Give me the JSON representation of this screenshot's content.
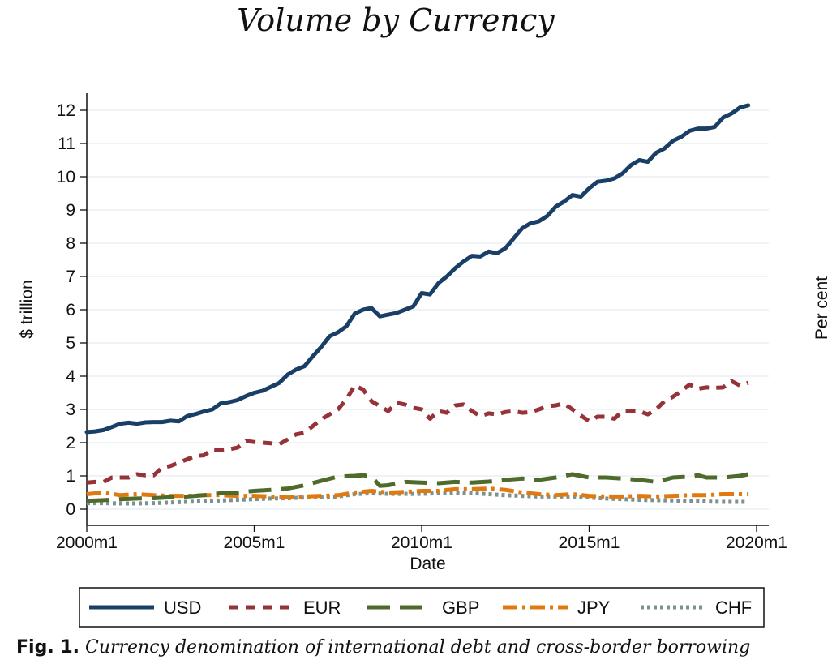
{
  "caption": {
    "label": "Fig. 1.",
    "text": "Currency denomination of international debt and cross-border borrowing"
  },
  "chart_data": {
    "type": "line",
    "title": "Volume by Currency",
    "xlabel": "Date",
    "ylabel": "$ trillion",
    "ylabel_right": "Per cent",
    "xlim": [
      2000.0,
      2020.0
    ],
    "ylim": [
      0,
      12
    ],
    "y_ticks": [
      "0",
      "1",
      "2",
      "3",
      "4",
      "5",
      "6",
      "7",
      "8",
      "9",
      "10",
      "11",
      "12"
    ],
    "x_ticks": [
      {
        "value": 2000.0,
        "label": "2000m1"
      },
      {
        "value": 2005.0,
        "label": "2005m1"
      },
      {
        "value": 2010.0,
        "label": "2010m1"
      },
      {
        "value": 2015.0,
        "label": "2015m1"
      },
      {
        "value": 2020.0,
        "label": "2020m1"
      }
    ],
    "grid": true,
    "legend_position": "bottom",
    "series": [
      {
        "name": "USD",
        "color": "#1a3f66",
        "dash": "solid",
        "points": [
          [
            2000.0,
            2.32
          ],
          [
            2000.25,
            2.34
          ],
          [
            2000.5,
            2.38
          ],
          [
            2000.75,
            2.47
          ],
          [
            2001.0,
            2.57
          ],
          [
            2001.25,
            2.6
          ],
          [
            2001.5,
            2.57
          ],
          [
            2001.75,
            2.61
          ],
          [
            2002.0,
            2.62
          ],
          [
            2002.25,
            2.62
          ],
          [
            2002.5,
            2.66
          ],
          [
            2002.75,
            2.64
          ],
          [
            2003.0,
            2.8
          ],
          [
            2003.25,
            2.86
          ],
          [
            2003.5,
            2.94
          ],
          [
            2003.75,
            3.0
          ],
          [
            2004.0,
            3.18
          ],
          [
            2004.25,
            3.22
          ],
          [
            2004.5,
            3.28
          ],
          [
            2004.75,
            3.4
          ],
          [
            2005.0,
            3.5
          ],
          [
            2005.25,
            3.56
          ],
          [
            2005.5,
            3.68
          ],
          [
            2005.75,
            3.8
          ],
          [
            2006.0,
            4.05
          ],
          [
            2006.25,
            4.2
          ],
          [
            2006.5,
            4.3
          ],
          [
            2006.75,
            4.6
          ],
          [
            2007.0,
            4.88
          ],
          [
            2007.25,
            5.2
          ],
          [
            2007.5,
            5.32
          ],
          [
            2007.75,
            5.5
          ],
          [
            2008.0,
            5.88
          ],
          [
            2008.25,
            6.0
          ],
          [
            2008.5,
            6.05
          ],
          [
            2008.75,
            5.8
          ],
          [
            2009.0,
            5.85
          ],
          [
            2009.25,
            5.9
          ],
          [
            2009.5,
            6.0
          ],
          [
            2009.75,
            6.1
          ],
          [
            2010.0,
            6.5
          ],
          [
            2010.25,
            6.46
          ],
          [
            2010.5,
            6.8
          ],
          [
            2010.75,
            7.0
          ],
          [
            2011.0,
            7.25
          ],
          [
            2011.25,
            7.45
          ],
          [
            2011.5,
            7.62
          ],
          [
            2011.75,
            7.6
          ],
          [
            2012.0,
            7.75
          ],
          [
            2012.25,
            7.7
          ],
          [
            2012.5,
            7.85
          ],
          [
            2012.75,
            8.15
          ],
          [
            2013.0,
            8.45
          ],
          [
            2013.25,
            8.6
          ],
          [
            2013.5,
            8.66
          ],
          [
            2013.75,
            8.82
          ],
          [
            2014.0,
            9.1
          ],
          [
            2014.25,
            9.25
          ],
          [
            2014.5,
            9.45
          ],
          [
            2014.75,
            9.4
          ],
          [
            2015.0,
            9.65
          ],
          [
            2015.25,
            9.85
          ],
          [
            2015.5,
            9.88
          ],
          [
            2015.75,
            9.95
          ],
          [
            2016.0,
            10.1
          ],
          [
            2016.25,
            10.35
          ],
          [
            2016.5,
            10.5
          ],
          [
            2016.75,
            10.45
          ],
          [
            2017.0,
            10.72
          ],
          [
            2017.25,
            10.85
          ],
          [
            2017.5,
            11.08
          ],
          [
            2017.75,
            11.2
          ],
          [
            2018.0,
            11.38
          ],
          [
            2018.25,
            11.45
          ],
          [
            2018.5,
            11.45
          ],
          [
            2018.75,
            11.5
          ],
          [
            2019.0,
            11.78
          ],
          [
            2019.25,
            11.9
          ],
          [
            2019.5,
            12.08
          ],
          [
            2019.75,
            12.15
          ]
        ]
      },
      {
        "name": "EUR",
        "color": "#963338",
        "dash": "short",
        "points": [
          [
            2000.0,
            0.8
          ],
          [
            2000.25,
            0.82
          ],
          [
            2000.5,
            0.82
          ],
          [
            2000.75,
            0.95
          ],
          [
            2001.0,
            0.95
          ],
          [
            2001.25,
            0.95
          ],
          [
            2001.5,
            1.05
          ],
          [
            2001.75,
            1.02
          ],
          [
            2002.0,
            1.02
          ],
          [
            2002.25,
            1.25
          ],
          [
            2002.5,
            1.3
          ],
          [
            2002.75,
            1.4
          ],
          [
            2003.0,
            1.5
          ],
          [
            2003.25,
            1.6
          ],
          [
            2003.5,
            1.62
          ],
          [
            2003.75,
            1.8
          ],
          [
            2004.0,
            1.78
          ],
          [
            2004.25,
            1.8
          ],
          [
            2004.5,
            1.85
          ],
          [
            2004.75,
            2.05
          ],
          [
            2005.0,
            2.02
          ],
          [
            2005.25,
            2.0
          ],
          [
            2005.5,
            1.98
          ],
          [
            2005.75,
            1.95
          ],
          [
            2006.0,
            2.1
          ],
          [
            2006.25,
            2.25
          ],
          [
            2006.5,
            2.3
          ],
          [
            2006.75,
            2.5
          ],
          [
            2007.0,
            2.7
          ],
          [
            2007.25,
            2.85
          ],
          [
            2007.5,
            3.0
          ],
          [
            2007.75,
            3.3
          ],
          [
            2008.0,
            3.72
          ],
          [
            2008.25,
            3.6
          ],
          [
            2008.5,
            3.25
          ],
          [
            2008.75,
            3.1
          ],
          [
            2009.0,
            2.95
          ],
          [
            2009.25,
            3.2
          ],
          [
            2009.5,
            3.15
          ],
          [
            2009.75,
            3.05
          ],
          [
            2010.0,
            3.0
          ],
          [
            2010.25,
            2.72
          ],
          [
            2010.5,
            2.95
          ],
          [
            2010.75,
            2.9
          ],
          [
            2011.0,
            3.12
          ],
          [
            2011.25,
            3.15
          ],
          [
            2011.5,
            2.95
          ],
          [
            2011.75,
            2.8
          ],
          [
            2012.0,
            2.88
          ],
          [
            2012.25,
            2.85
          ],
          [
            2012.5,
            2.92
          ],
          [
            2012.75,
            2.95
          ],
          [
            2013.0,
            2.9
          ],
          [
            2013.25,
            2.92
          ],
          [
            2013.5,
            3.0
          ],
          [
            2013.75,
            3.1
          ],
          [
            2014.0,
            3.12
          ],
          [
            2014.25,
            3.18
          ],
          [
            2014.5,
            3.0
          ],
          [
            2014.75,
            2.82
          ],
          [
            2015.0,
            2.65
          ],
          [
            2015.25,
            2.78
          ],
          [
            2015.5,
            2.78
          ],
          [
            2015.75,
            2.72
          ],
          [
            2016.0,
            2.95
          ],
          [
            2016.25,
            2.95
          ],
          [
            2016.5,
            2.95
          ],
          [
            2016.75,
            2.85
          ],
          [
            2017.0,
            3.0
          ],
          [
            2017.25,
            3.25
          ],
          [
            2017.5,
            3.38
          ],
          [
            2017.75,
            3.55
          ],
          [
            2018.0,
            3.75
          ],
          [
            2018.25,
            3.62
          ],
          [
            2018.5,
            3.66
          ],
          [
            2018.75,
            3.65
          ],
          [
            2019.0,
            3.66
          ],
          [
            2019.25,
            3.85
          ],
          [
            2019.5,
            3.72
          ],
          [
            2019.75,
            3.8
          ]
        ]
      },
      {
        "name": "GBP",
        "color": "#4e6b2c",
        "dash": "long",
        "points": [
          [
            2000.0,
            0.25
          ],
          [
            2000.5,
            0.27
          ],
          [
            2001.0,
            0.3
          ],
          [
            2001.5,
            0.32
          ],
          [
            2002.0,
            0.33
          ],
          [
            2002.5,
            0.36
          ],
          [
            2003.0,
            0.38
          ],
          [
            2003.5,
            0.42
          ],
          [
            2004.0,
            0.48
          ],
          [
            2004.5,
            0.5
          ],
          [
            2005.0,
            0.55
          ],
          [
            2005.5,
            0.58
          ],
          [
            2006.0,
            0.62
          ],
          [
            2006.5,
            0.72
          ],
          [
            2007.0,
            0.85
          ],
          [
            2007.5,
            0.98
          ],
          [
            2008.0,
            1.0
          ],
          [
            2008.25,
            1.02
          ],
          [
            2008.5,
            0.98
          ],
          [
            2008.75,
            0.7
          ],
          [
            2009.0,
            0.72
          ],
          [
            2009.5,
            0.82
          ],
          [
            2010.0,
            0.8
          ],
          [
            2010.5,
            0.78
          ],
          [
            2011.0,
            0.82
          ],
          [
            2011.5,
            0.8
          ],
          [
            2012.0,
            0.83
          ],
          [
            2012.5,
            0.88
          ],
          [
            2013.0,
            0.92
          ],
          [
            2013.5,
            0.88
          ],
          [
            2014.0,
            0.95
          ],
          [
            2014.5,
            1.05
          ],
          [
            2015.0,
            0.95
          ],
          [
            2015.5,
            0.95
          ],
          [
            2016.0,
            0.92
          ],
          [
            2016.5,
            0.88
          ],
          [
            2017.0,
            0.82
          ],
          [
            2017.5,
            0.95
          ],
          [
            2018.0,
            0.98
          ],
          [
            2018.25,
            1.02
          ],
          [
            2018.5,
            0.95
          ],
          [
            2019.0,
            0.95
          ],
          [
            2019.5,
            1.0
          ],
          [
            2019.75,
            1.05
          ]
        ]
      },
      {
        "name": "JPY",
        "color": "#e07a10",
        "dash": "dashdot",
        "points": [
          [
            2000.0,
            0.45
          ],
          [
            2000.5,
            0.5
          ],
          [
            2001.0,
            0.42
          ],
          [
            2001.5,
            0.45
          ],
          [
            2002.0,
            0.42
          ],
          [
            2002.5,
            0.4
          ],
          [
            2003.0,
            0.4
          ],
          [
            2003.5,
            0.42
          ],
          [
            2004.0,
            0.42
          ],
          [
            2004.5,
            0.4
          ],
          [
            2005.0,
            0.4
          ],
          [
            2005.5,
            0.38
          ],
          [
            2006.0,
            0.35
          ],
          [
            2006.5,
            0.38
          ],
          [
            2007.0,
            0.4
          ],
          [
            2007.5,
            0.42
          ],
          [
            2008.0,
            0.5
          ],
          [
            2008.5,
            0.55
          ],
          [
            2009.0,
            0.5
          ],
          [
            2009.5,
            0.52
          ],
          [
            2010.0,
            0.55
          ],
          [
            2010.5,
            0.55
          ],
          [
            2011.0,
            0.6
          ],
          [
            2011.5,
            0.6
          ],
          [
            2012.0,
            0.62
          ],
          [
            2012.5,
            0.58
          ],
          [
            2013.0,
            0.5
          ],
          [
            2013.5,
            0.45
          ],
          [
            2014.0,
            0.42
          ],
          [
            2014.5,
            0.45
          ],
          [
            2015.0,
            0.4
          ],
          [
            2015.5,
            0.38
          ],
          [
            2016.0,
            0.38
          ],
          [
            2016.5,
            0.4
          ],
          [
            2017.0,
            0.38
          ],
          [
            2017.5,
            0.4
          ],
          [
            2018.0,
            0.42
          ],
          [
            2018.5,
            0.42
          ],
          [
            2019.0,
            0.45
          ],
          [
            2019.5,
            0.45
          ],
          [
            2019.75,
            0.45
          ]
        ]
      },
      {
        "name": "CHF",
        "color": "#7d9290",
        "dash": "dot",
        "points": [
          [
            2000.0,
            0.18
          ],
          [
            2000.5,
            0.18
          ],
          [
            2001.0,
            0.17
          ],
          [
            2001.5,
            0.17
          ],
          [
            2002.0,
            0.18
          ],
          [
            2002.5,
            0.2
          ],
          [
            2003.0,
            0.22
          ],
          [
            2003.5,
            0.24
          ],
          [
            2004.0,
            0.26
          ],
          [
            2004.5,
            0.28
          ],
          [
            2005.0,
            0.3
          ],
          [
            2005.5,
            0.32
          ],
          [
            2006.0,
            0.33
          ],
          [
            2006.5,
            0.35
          ],
          [
            2007.0,
            0.36
          ],
          [
            2007.5,
            0.38
          ],
          [
            2008.0,
            0.45
          ],
          [
            2008.5,
            0.48
          ],
          [
            2009.0,
            0.46
          ],
          [
            2009.5,
            0.46
          ],
          [
            2010.0,
            0.46
          ],
          [
            2010.5,
            0.48
          ],
          [
            2011.0,
            0.5
          ],
          [
            2011.5,
            0.48
          ],
          [
            2012.0,
            0.45
          ],
          [
            2012.5,
            0.42
          ],
          [
            2013.0,
            0.4
          ],
          [
            2013.5,
            0.38
          ],
          [
            2014.0,
            0.38
          ],
          [
            2014.5,
            0.38
          ],
          [
            2015.0,
            0.35
          ],
          [
            2015.5,
            0.32
          ],
          [
            2016.0,
            0.3
          ],
          [
            2016.5,
            0.28
          ],
          [
            2017.0,
            0.27
          ],
          [
            2017.5,
            0.26
          ],
          [
            2018.0,
            0.25
          ],
          [
            2018.5,
            0.23
          ],
          [
            2019.0,
            0.22
          ],
          [
            2019.5,
            0.22
          ],
          [
            2019.75,
            0.22
          ]
        ]
      }
    ]
  }
}
